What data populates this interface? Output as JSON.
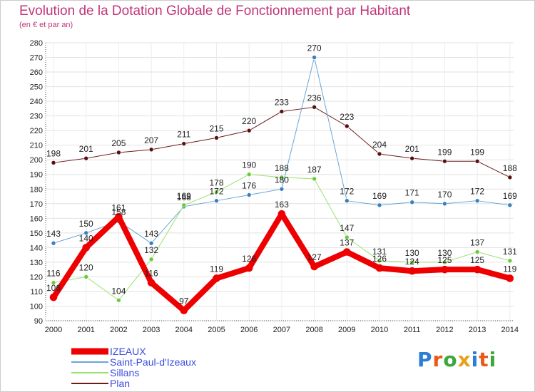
{
  "header": {
    "title": "Evolution de la Dotation Globale de Fonctionnement par Habitant",
    "subtitle": "(en € et par an)"
  },
  "logo": {
    "text": "Proxiti",
    "colors": [
      "#2a7fd4",
      "#e85a1a",
      "#3aa83a",
      "#e8a020",
      "#2a7fd4",
      "#e85a1a",
      "#3aa83a"
    ]
  },
  "chart_data": {
    "type": "line",
    "title": "Evolution de la Dotation Globale de Fonctionnement par Habitant",
    "subtitle": "(en € et par an)",
    "xlabel": "",
    "ylabel": "",
    "ylim": [
      90,
      280
    ],
    "y_ticks": [
      90,
      100,
      110,
      120,
      130,
      140,
      150,
      160,
      170,
      180,
      190,
      200,
      210,
      220,
      230,
      240,
      250,
      260,
      270,
      280
    ],
    "grid": true,
    "legend_position": "bottom-left",
    "x": [
      "2000",
      "2001",
      "2002",
      "2003",
      "2004",
      "2005",
      "2006",
      "2007",
      "2008",
      "2009",
      "2010",
      "2011",
      "2012",
      "2013",
      "2014"
    ],
    "series": [
      {
        "name": "Plan",
        "color": "#6e1a1a",
        "marker": "#5a1010",
        "width": 1,
        "values": [
          198,
          201,
          205,
          207,
          211,
          215,
          220,
          233,
          236,
          223,
          204,
          201,
          199,
          199,
          188
        ]
      },
      {
        "name": "Saint-Paul-d'Izeaux",
        "color": "#6aa6d6",
        "marker": "#3a7fc0",
        "width": 1,
        "values": [
          143,
          150,
          158,
          143,
          168,
          172,
          176,
          180,
          270,
          172,
          169,
          171,
          170,
          172,
          169
        ]
      },
      {
        "name": "Sillans",
        "color": "#9ee070",
        "marker": "#6acb3a",
        "width": 1,
        "values": [
          116,
          120,
          104,
          132,
          169,
          178,
          190,
          188,
          187,
          147,
          131,
          130,
          130,
          137,
          131
        ]
      },
      {
        "name": "IZEAUX",
        "color": "#ee0000",
        "marker": "#ee0000",
        "width": 8,
        "values": [
          106,
          140,
          161,
          116,
          97,
          119,
          126,
          163,
          127,
          137,
          126,
          124,
          125,
          125,
          119
        ]
      }
    ]
  }
}
